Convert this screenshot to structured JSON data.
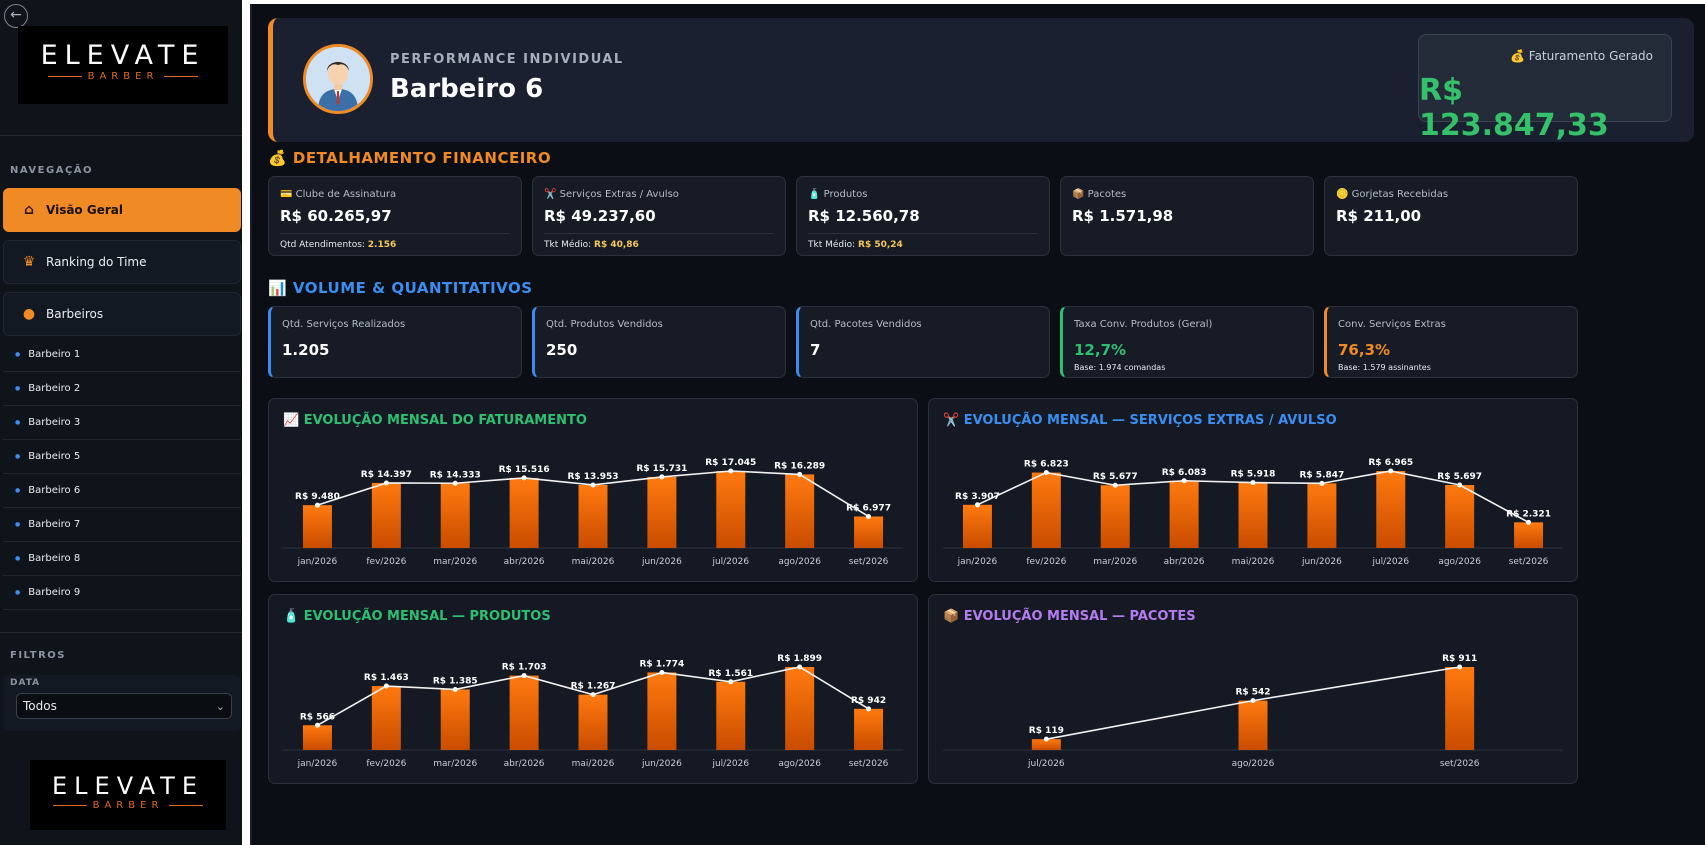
{
  "sidebar": {
    "logo_main": "ELEVATE",
    "logo_sub": "BARBER",
    "nav_label": "NAVEGAÇÃO",
    "nav": [
      {
        "label": "Visão Geral",
        "icon": "home-icon"
      },
      {
        "label": "Ranking do Time",
        "icon": "crown-icon"
      },
      {
        "label": "Barbeiros",
        "icon": "dot-icon"
      }
    ],
    "barbers": [
      "Barbeiro 1",
      "Barbeiro 2",
      "Barbeiro 3",
      "Barbeiro 5",
      "Barbeiro 6",
      "Barbeiro 7",
      "Barbeiro 8",
      "Barbeiro 9"
    ],
    "filters_label": "FILTROS",
    "date_label": "DATA",
    "date_value": "Todos"
  },
  "header": {
    "perf_label": "PERFORMANCE INDIVIDUAL",
    "name": "Barbeiro 6",
    "fat_label": "💰 Faturamento Gerado",
    "fat_value": "R$ 123.847,33"
  },
  "fin": {
    "title": "💰 DETALHAMENTO FINANCEIRO",
    "title_color": "#f08a24",
    "cards": [
      {
        "label": "💳 Clube de Assinatura",
        "value": "R$ 60.265,97",
        "foot_label": "Qtd Atendimentos: ",
        "foot_value": "2.156"
      },
      {
        "label": "✂️ Serviços Extras / Avulso",
        "value": "R$ 49.237,60",
        "foot_label": "Tkt Médio: ",
        "foot_value": "R$ 40,86"
      },
      {
        "label": "🧴 Produtos",
        "value": "R$ 12.560,78",
        "foot_label": "Tkt Médio: ",
        "foot_value": "R$ 50,24"
      },
      {
        "label": "📦 Pacotes",
        "value": "R$ 1.571,98"
      },
      {
        "label": "🪙 Gorjetas Recebidas",
        "value": "R$ 211,00"
      }
    ]
  },
  "vol": {
    "title": "📊 VOLUME & QUANTITATIVOS",
    "title_color": "#3b8ef0",
    "cards": [
      {
        "label": "Qtd. Serviços Realizados",
        "value": "1.205"
      },
      {
        "label": "Qtd. Produtos Vendidos",
        "value": "250"
      },
      {
        "label": "Qtd. Pacotes Vendidos",
        "value": "7"
      },
      {
        "label": "Taxa Conv. Produtos (Geral)",
        "value": "12,7%",
        "sub": "Base: 1.974 comandas",
        "color": "#2fbf71"
      },
      {
        "label": "Conv. Serviços Extras",
        "value": "76,3%",
        "sub": "Base: 1.579 assinantes",
        "color": "#f08a24"
      }
    ]
  },
  "chart_data": [
    {
      "type": "bar",
      "title": "📈 EVOLUÇÃO MENSAL DO FATURAMENTO",
      "title_color": "#2fbf71",
      "categories": [
        "jan/2026",
        "fev/2026",
        "mar/2026",
        "abr/2026",
        "mai/2026",
        "jun/2026",
        "jul/2026",
        "ago/2026",
        "set/2026"
      ],
      "values": [
        9480,
        14397,
        14333,
        15516,
        13953,
        15731,
        17045,
        16289,
        6977
      ],
      "labels": [
        "R$ 9.480",
        "R$ 14.397",
        "R$ 14.333",
        "R$ 15.516",
        "R$ 13.953",
        "R$ 15.731",
        "R$ 17.045",
        "R$ 16.289",
        "R$ 6.977"
      ]
    },
    {
      "type": "bar",
      "title": "✂️ EVOLUÇÃO MENSAL — SERVIÇOS EXTRAS / AVULSO",
      "title_color": "#3b8ef0",
      "categories": [
        "jan/2026",
        "fev/2026",
        "mar/2026",
        "abr/2026",
        "mai/2026",
        "jun/2026",
        "jul/2026",
        "ago/2026",
        "set/2026"
      ],
      "values": [
        3907,
        6823,
        5677,
        6083,
        5918,
        5847,
        6965,
        5697,
        2321
      ],
      "labels": [
        "R$ 3.907",
        "R$ 6.823",
        "R$ 5.677",
        "R$ 6.083",
        "R$ 5.918",
        "R$ 5.847",
        "R$ 6.965",
        "R$ 5.697",
        "R$ 2.321"
      ]
    },
    {
      "type": "bar",
      "title": "🧴 EVOLUÇÃO MENSAL — PRODUTOS",
      "title_color": "#2fbf71",
      "categories": [
        "jan/2026",
        "fev/2026",
        "mar/2026",
        "abr/2026",
        "mai/2026",
        "jun/2026",
        "jul/2026",
        "ago/2026",
        "set/2026"
      ],
      "values": [
        566,
        1463,
        1385,
        1703,
        1267,
        1774,
        1561,
        1899,
        942
      ],
      "labels": [
        "R$ 566",
        "R$ 1.463",
        "R$ 1.385",
        "R$ 1.703",
        "R$ 1.267",
        "R$ 1.774",
        "R$ 1.561",
        "R$ 1.899",
        "R$ 942"
      ]
    },
    {
      "type": "bar",
      "title": "📦 EVOLUÇÃO MENSAL — PACOTES",
      "title_color": "#b57cf0",
      "categories": [
        "jul/2026",
        "ago/2026",
        "set/2026"
      ],
      "values": [
        119,
        542,
        911
      ],
      "labels": [
        "R$ 119",
        "R$ 542",
        "R$ 911"
      ]
    }
  ]
}
